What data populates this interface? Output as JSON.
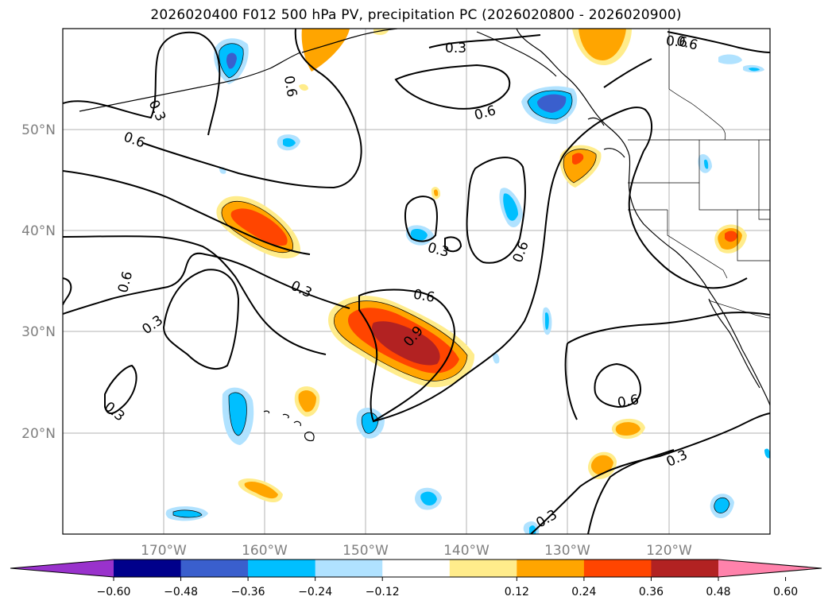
{
  "title": "2026020400 F012 500 hPa PV, precipitation PC (2026020800 - 2026020900)",
  "map": {
    "lon_range": [
      -180,
      -110
    ],
    "lat_range": [
      10,
      60
    ],
    "lon_ticks": [
      {
        "value": -170,
        "label": "170°W"
      },
      {
        "value": -160,
        "label": "160°W"
      },
      {
        "value": -150,
        "label": "150°W"
      },
      {
        "value": -140,
        "label": "140°W"
      },
      {
        "value": -130,
        "label": "130°W"
      },
      {
        "value": -120,
        "label": "120°W"
      }
    ],
    "lat_ticks": [
      {
        "value": 50,
        "label": "50°N"
      },
      {
        "value": 40,
        "label": "40°N"
      },
      {
        "value": 30,
        "label": "30°N"
      },
      {
        "value": 20,
        "label": "20°N"
      }
    ],
    "gridlines": true,
    "contour_labels": [
      "0.3",
      "0.6",
      "0.6",
      "0.3",
      "0.6",
      "0.3",
      "0.6",
      "0.3",
      "0.6",
      "0.6",
      "0.9",
      "0.3",
      "0.6",
      "0.3",
      "0.3",
      "0.6",
      "0.6",
      "0.3"
    ]
  },
  "colorbar": {
    "colors": [
      "#9932cc",
      "#00008b",
      "#3a5fcd",
      "#00bfff",
      "#b0e2ff",
      "#ffffff",
      "#ffec8b",
      "#ffa500",
      "#ff4500",
      "#b22222",
      "#ff82ab"
    ],
    "ticks": [
      "−0.60",
      "−0.48",
      "−0.36",
      "−0.24",
      "−0.12",
      "0.12",
      "0.24",
      "0.36",
      "0.48",
      "0.60"
    ],
    "extend": "both"
  }
}
